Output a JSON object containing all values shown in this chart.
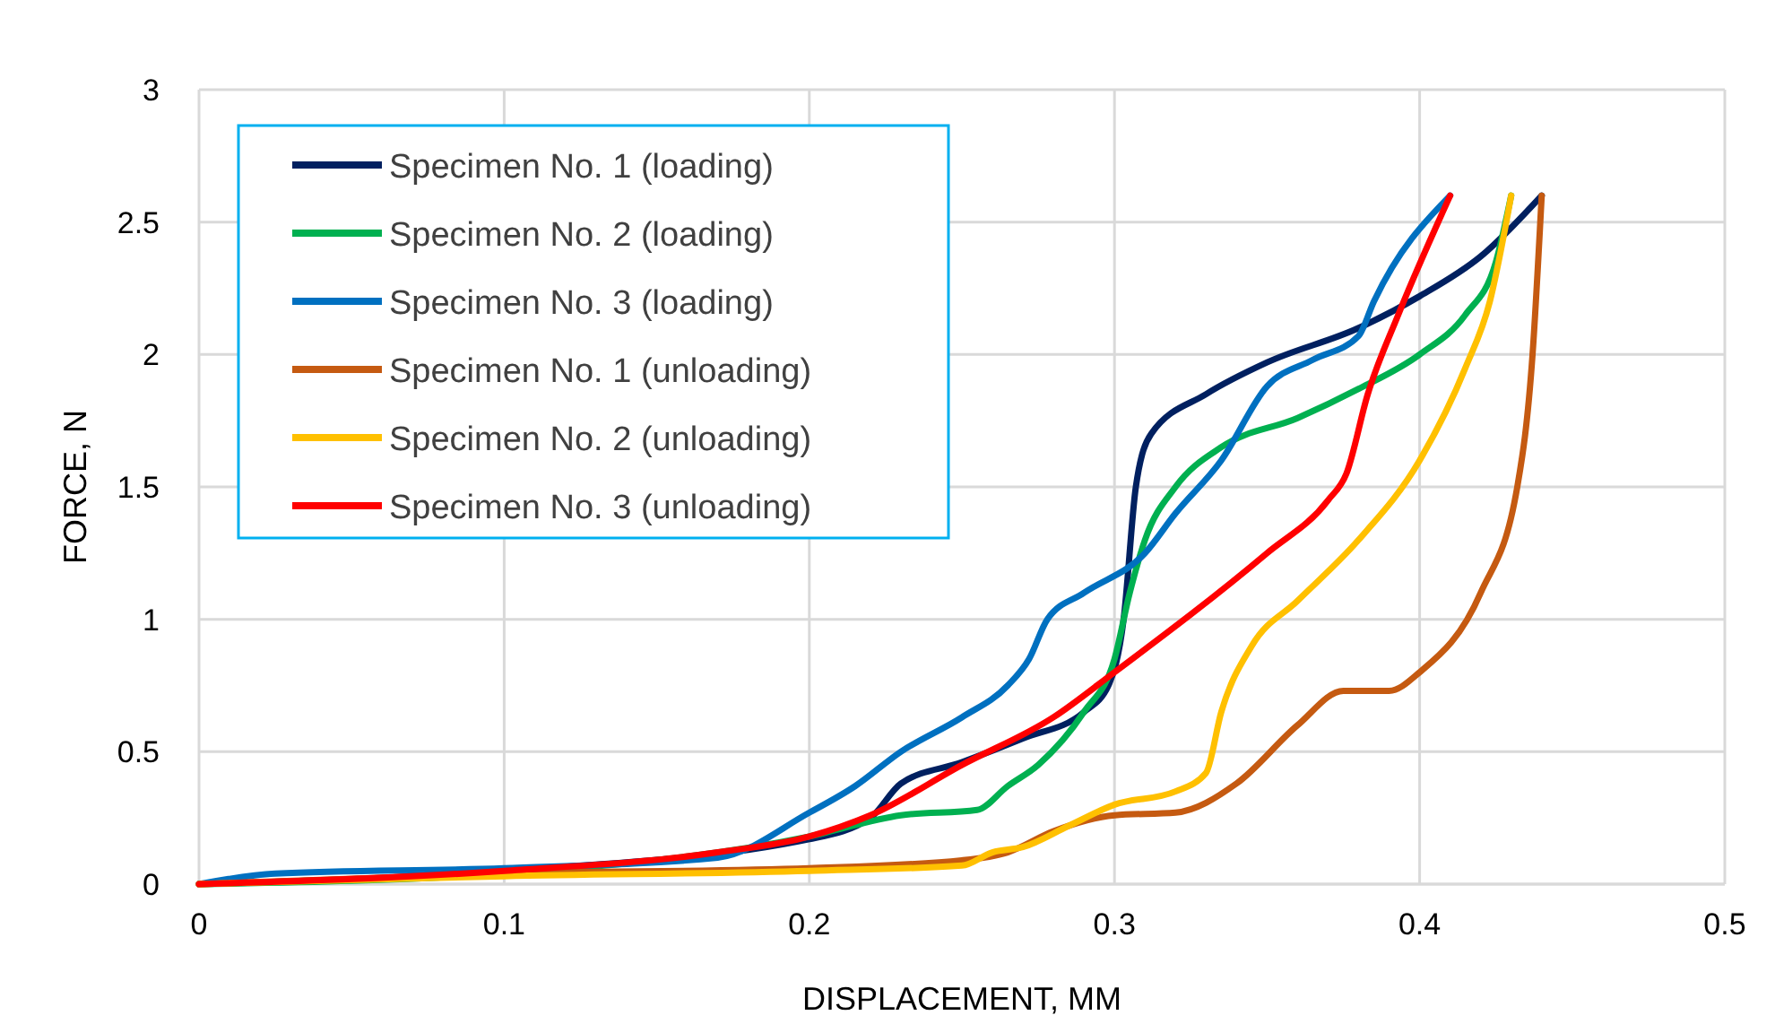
{
  "chart_data": {
    "type": "line",
    "xlabel": "DISPLACEMENT, MM",
    "ylabel": "FORCE, N",
    "xlim": [
      0,
      0.5
    ],
    "ylim": [
      0,
      3
    ],
    "xticks": [
      0,
      0.1,
      0.2,
      0.3,
      0.4,
      0.5
    ],
    "yticks": [
      0,
      0.5,
      1,
      1.5,
      2,
      2.5,
      3
    ],
    "grid": true,
    "legend": "top left",
    "marker": "none",
    "line_style": "solid",
    "series": [
      {
        "name": "Specimen No. 1 (loading)",
        "color": "#002060",
        "x": [
          0,
          0.1,
          0.2,
          0.22,
          0.23,
          0.25,
          0.27,
          0.29,
          0.298,
          0.303,
          0.307,
          0.312,
          0.33,
          0.35,
          0.38,
          0.4,
          0.42,
          0.44
        ],
        "values": [
          0,
          0.05,
          0.17,
          0.25,
          0.38,
          0.46,
          0.55,
          0.65,
          0.75,
          1.0,
          1.5,
          1.7,
          1.85,
          1.97,
          2.1,
          2.22,
          2.37,
          2.6
        ]
      },
      {
        "name": "Specimen No. 2 (loading)",
        "color": "#00b050",
        "x": [
          0,
          0.1,
          0.2,
          0.23,
          0.255,
          0.265,
          0.275,
          0.29,
          0.3,
          0.305,
          0.31,
          0.32,
          0.335,
          0.36,
          0.38,
          0.4,
          0.415,
          0.425,
          0.43
        ],
        "values": [
          0,
          0.04,
          0.18,
          0.26,
          0.28,
          0.37,
          0.45,
          0.65,
          0.85,
          1.1,
          1.3,
          1.5,
          1.65,
          1.76,
          1.87,
          2.0,
          2.15,
          2.35,
          2.6
        ]
      },
      {
        "name": "Specimen No. 3 (loading)",
        "color": "#0070c0",
        "x": [
          0,
          0.025,
          0.1,
          0.17,
          0.2,
          0.215,
          0.23,
          0.25,
          0.265,
          0.272,
          0.278,
          0.29,
          0.31,
          0.32,
          0.335,
          0.35,
          0.365,
          0.38,
          0.385,
          0.41
        ],
        "values": [
          0,
          0.04,
          0.06,
          0.1,
          0.27,
          0.37,
          0.5,
          0.63,
          0.75,
          0.85,
          1.0,
          1.1,
          1.25,
          1.4,
          1.6,
          1.88,
          1.98,
          2.07,
          2.2,
          2.6
        ]
      },
      {
        "name": "Specimen No. 1 (unloading)",
        "color": "#c55a11",
        "x": [
          0,
          0.1,
          0.2,
          0.25,
          0.265,
          0.28,
          0.3,
          0.32,
          0.34,
          0.36,
          0.375,
          0.39,
          0.4,
          0.42,
          0.432,
          0.437,
          0.44
        ],
        "values": [
          0,
          0.04,
          0.06,
          0.09,
          0.12,
          0.2,
          0.26,
          0.27,
          0.38,
          0.6,
          0.73,
          0.73,
          0.8,
          1.1,
          1.5,
          2.0,
          2.6
        ]
      },
      {
        "name": "Specimen No. 2 (unloading)",
        "color": "#ffc000",
        "x": [
          0,
          0.1,
          0.2,
          0.25,
          0.26,
          0.27,
          0.285,
          0.3,
          0.32,
          0.33,
          0.335,
          0.345,
          0.36,
          0.38,
          0.4,
          0.415,
          0.423,
          0.43
        ],
        "values": [
          0,
          0.03,
          0.05,
          0.07,
          0.12,
          0.14,
          0.22,
          0.3,
          0.35,
          0.42,
          0.65,
          0.9,
          1.07,
          1.3,
          1.6,
          1.95,
          2.2,
          2.6
        ]
      },
      {
        "name": "Specimen No. 3 (unloading)",
        "color": "#ff0000",
        "x": [
          0,
          0.1,
          0.17,
          0.2,
          0.22,
          0.25,
          0.28,
          0.3,
          0.35,
          0.37,
          0.376,
          0.383,
          0.393,
          0.41
        ],
        "values": [
          0,
          0.05,
          0.12,
          0.18,
          0.26,
          0.45,
          0.63,
          0.8,
          1.25,
          1.45,
          1.55,
          1.85,
          2.15,
          2.6
        ]
      }
    ]
  }
}
